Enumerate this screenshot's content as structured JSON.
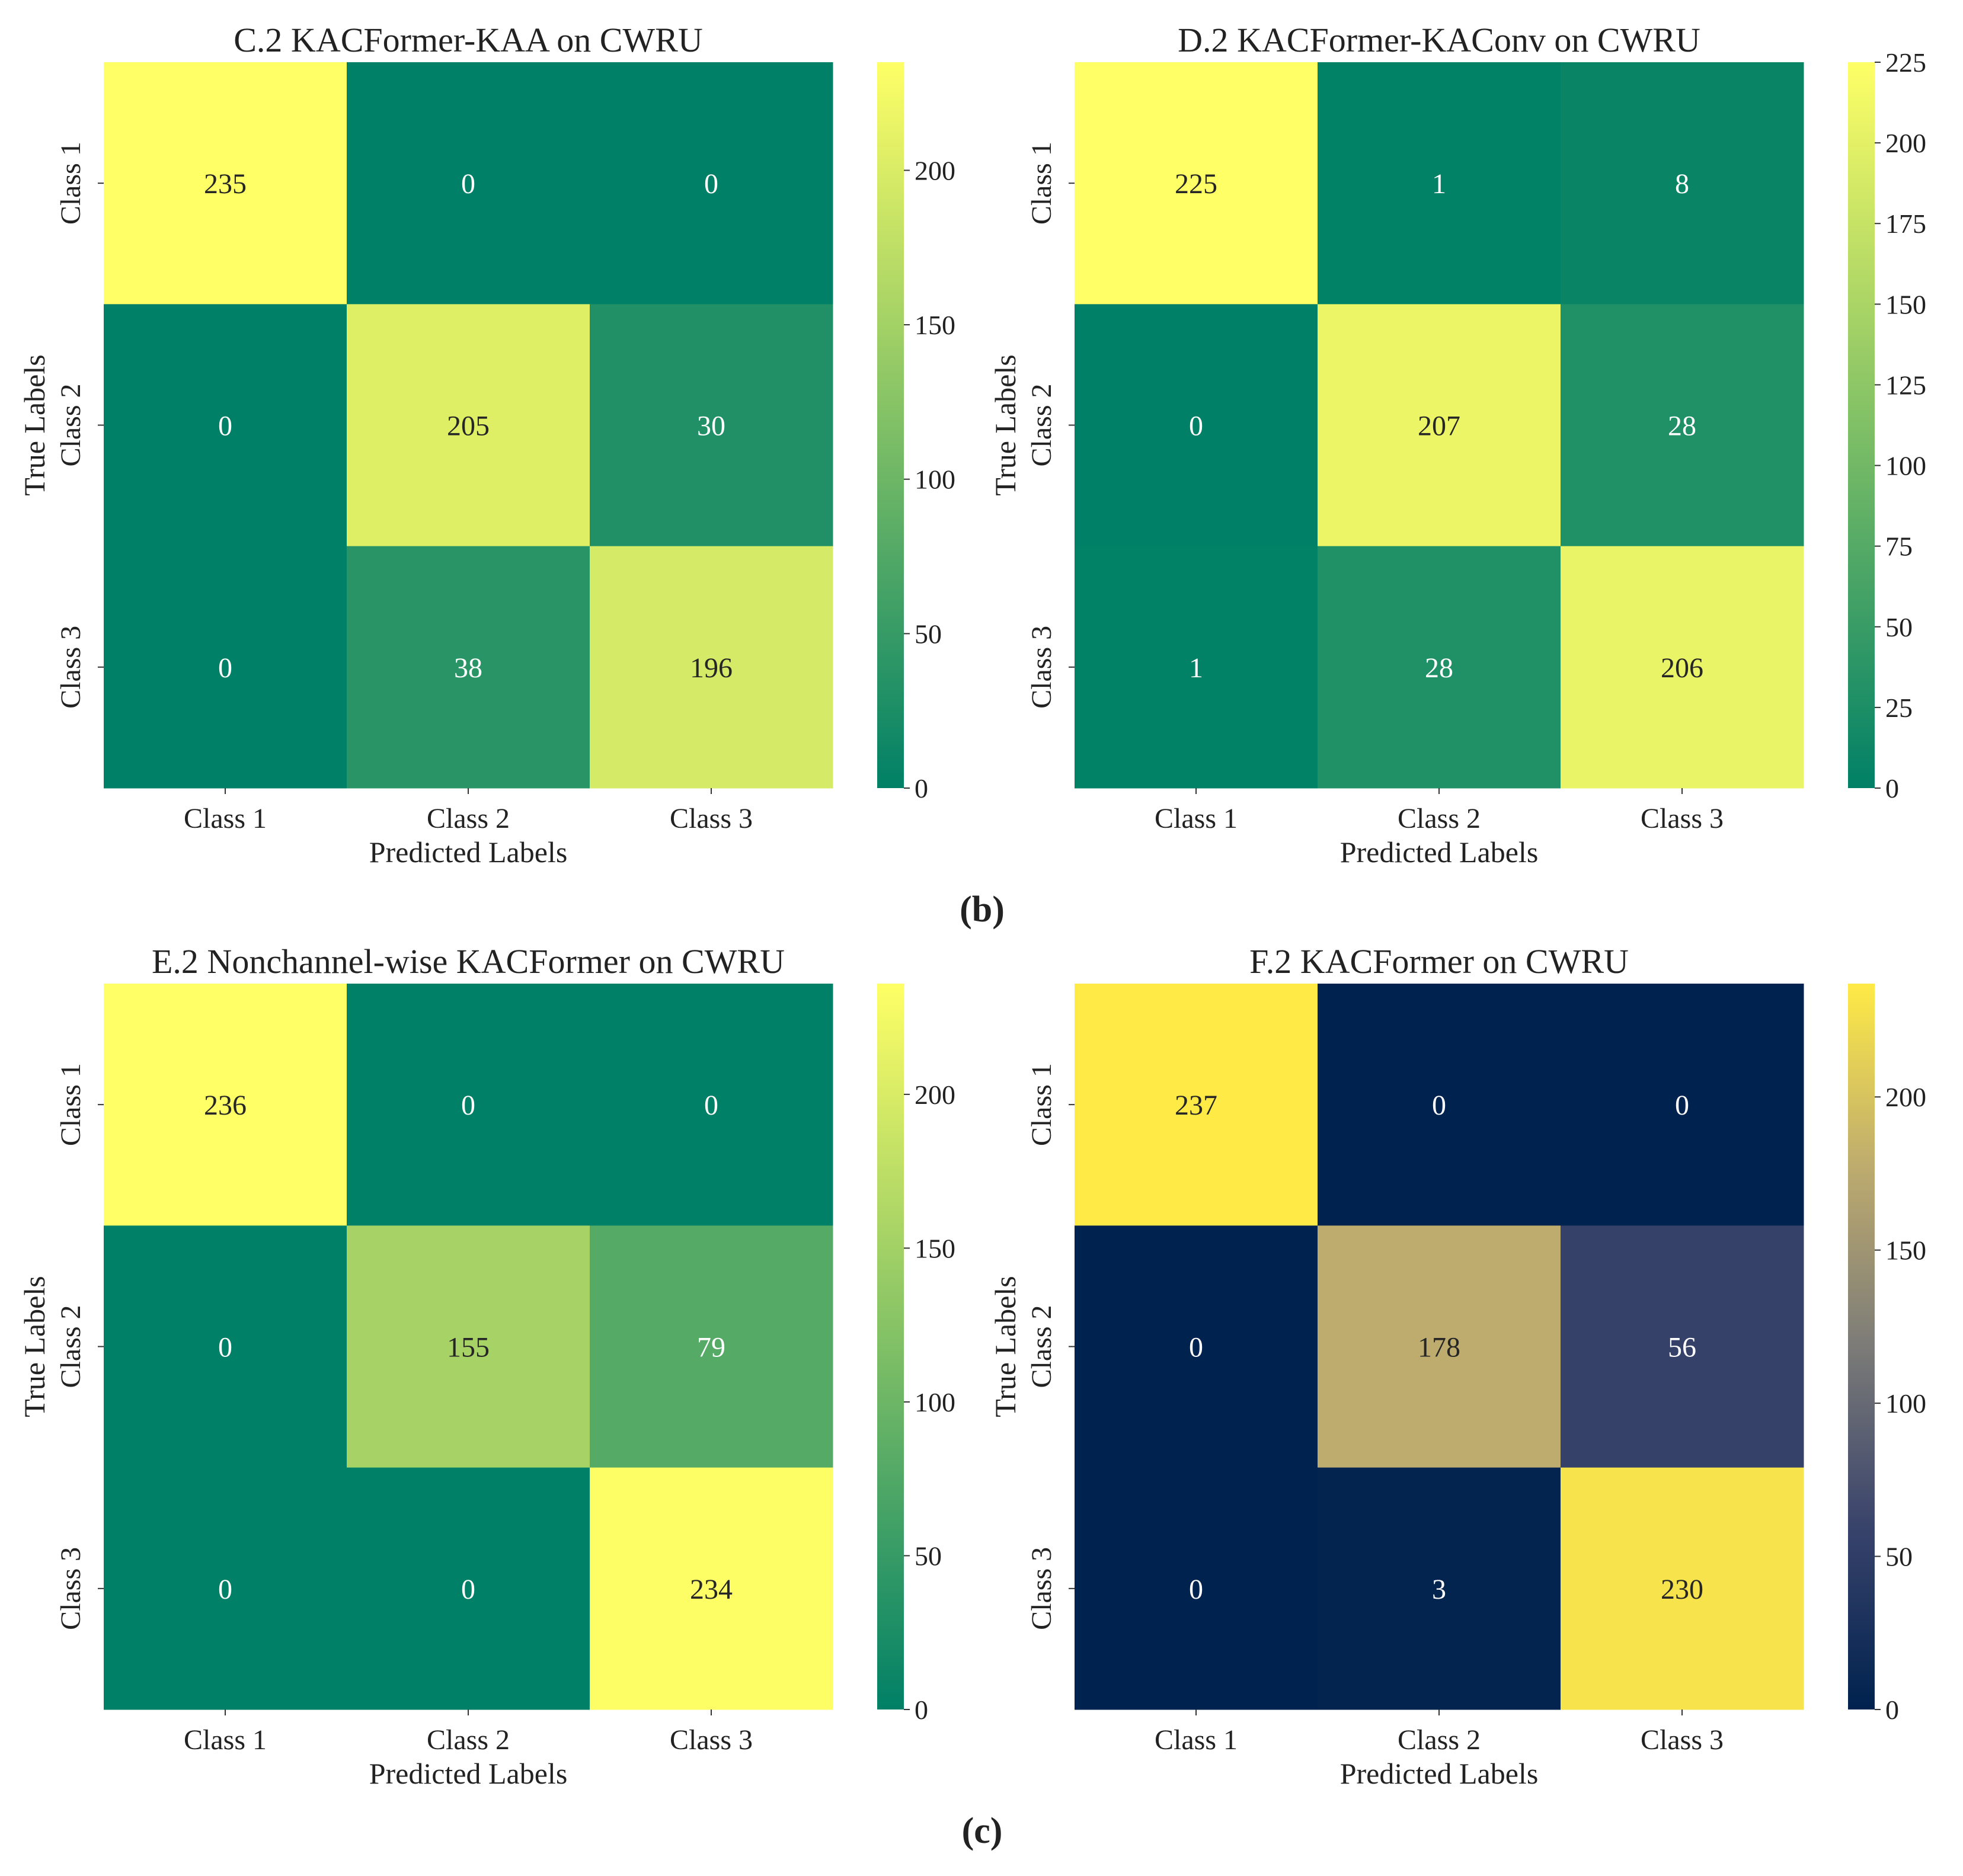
{
  "figure": {
    "caption_b": "(b)",
    "caption_c": "(c)"
  },
  "chart_data": [
    {
      "type": "heatmap",
      "title": "C.2 KACFormer-KAA on CWRU",
      "xlabel": "Predicted Labels",
      "ylabel": "True Labels",
      "x_categories": [
        "Class 1",
        "Class 2",
        "Class 3"
      ],
      "y_categories": [
        "Class 1",
        "Class 2",
        "Class 3"
      ],
      "values": [
        [
          235,
          0,
          0
        ],
        [
          0,
          205,
          30
        ],
        [
          0,
          38,
          196
        ]
      ],
      "colormap": "summer",
      "colorbar": {
        "min": 0,
        "max": 235,
        "ticks": [
          0,
          50,
          100,
          150,
          200
        ]
      }
    },
    {
      "type": "heatmap",
      "title": "D.2 KACFormer-KAConv on CWRU",
      "xlabel": "Predicted Labels",
      "ylabel": "True Labels",
      "x_categories": [
        "Class 1",
        "Class 2",
        "Class 3"
      ],
      "y_categories": [
        "Class 1",
        "Class 2",
        "Class 3"
      ],
      "values": [
        [
          225,
          1,
          8
        ],
        [
          0,
          207,
          28
        ],
        [
          1,
          28,
          206
        ]
      ],
      "colormap": "summer",
      "colorbar": {
        "min": 0,
        "max": 225,
        "ticks": [
          0,
          25,
          50,
          75,
          100,
          125,
          150,
          175,
          200,
          225
        ]
      }
    },
    {
      "type": "heatmap",
      "title": "E.2 Nonchannel-wise KACFormer on CWRU",
      "xlabel": "Predicted Labels",
      "ylabel": "True Labels",
      "x_categories": [
        "Class 1",
        "Class 2",
        "Class 3"
      ],
      "y_categories": [
        "Class 1",
        "Class 2",
        "Class 3"
      ],
      "values": [
        [
          236,
          0,
          0
        ],
        [
          0,
          155,
          79
        ],
        [
          0,
          0,
          234
        ]
      ],
      "colormap": "summer",
      "colorbar": {
        "min": 0,
        "max": 236,
        "ticks": [
          0,
          50,
          100,
          150,
          200
        ]
      }
    },
    {
      "type": "heatmap",
      "title": "F.2 KACFormer on CWRU",
      "xlabel": "Predicted Labels",
      "ylabel": "True Labels",
      "x_categories": [
        "Class 1",
        "Class 2",
        "Class 3"
      ],
      "y_categories": [
        "Class 1",
        "Class 2",
        "Class 3"
      ],
      "values": [
        [
          237,
          0,
          0
        ],
        [
          0,
          178,
          56
        ],
        [
          0,
          3,
          230
        ]
      ],
      "colormap": "cividis",
      "colorbar": {
        "min": 0,
        "max": 237,
        "ticks": [
          0,
          50,
          100,
          150,
          200
        ]
      }
    }
  ]
}
